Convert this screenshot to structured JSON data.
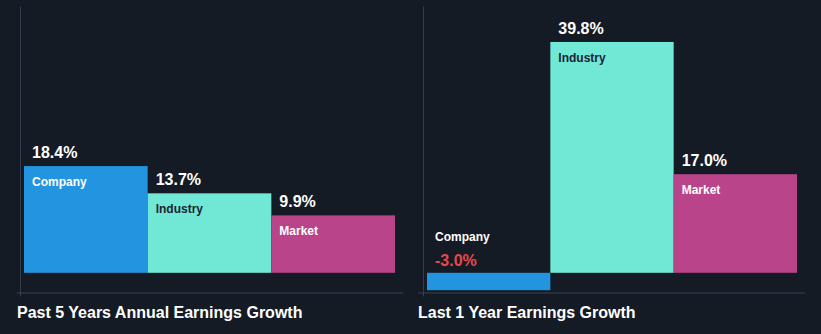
{
  "chart_data": [
    {
      "type": "bar",
      "title": "Past 5 Years Annual Earnings Growth",
      "categories": [
        "Company",
        "Industry",
        "Market"
      ],
      "values": [
        18.4,
        13.7,
        9.9
      ],
      "value_labels": [
        "18.4%",
        "13.7%",
        "9.9%"
      ],
      "colors": [
        "#2394df",
        "#71e8d6",
        "#b9448a"
      ],
      "ylim": [
        -4,
        46
      ],
      "data_labels": true,
      "tick_labels": false,
      "grid": false
    },
    {
      "type": "bar",
      "title": "Last 1 Year Earnings Growth",
      "categories": [
        "Company",
        "Industry",
        "Market"
      ],
      "values": [
        -3.0,
        39.8,
        17.0
      ],
      "value_labels": [
        "-3.0%",
        "39.8%",
        "17.0%"
      ],
      "colors": [
        "#2394df",
        "#71e8d6",
        "#b9448a"
      ],
      "ylim": [
        -4,
        46
      ],
      "data_labels": true,
      "tick_labels": false,
      "grid": false
    }
  ]
}
